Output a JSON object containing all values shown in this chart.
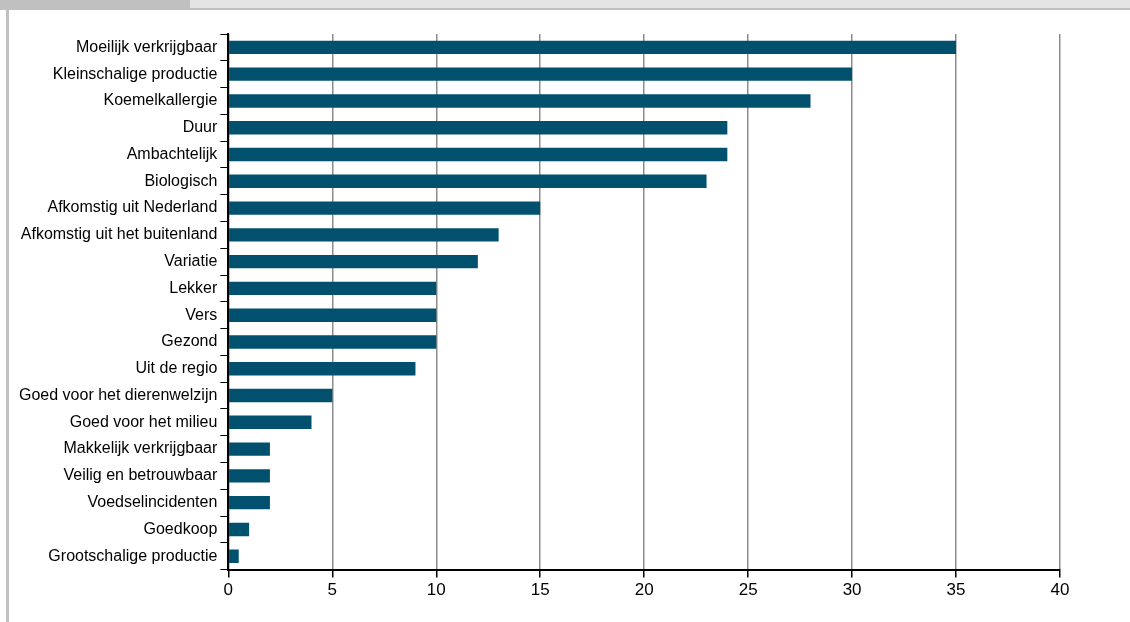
{
  "chart_data": {
    "type": "bar",
    "orientation": "horizontal",
    "categories": [
      "Moeilijk verkrijgbaar",
      "Kleinschalige productie",
      "Koemelkallergie",
      "Duur",
      "Ambachtelijk",
      "Biologisch",
      "Afkomstig uit Nederland",
      "Afkomstig uit het buitenland",
      "Variatie",
      "Lekker",
      "Vers",
      "Gezond",
      "Uit de regio",
      "Goed voor het dierenwelzijn",
      "Goed voor het milieu",
      "Makkelijk verkrijgbaar",
      "Veilig en betrouwbaar",
      "Voedselincidenten",
      "Goedkoop",
      "Grootschalige productie"
    ],
    "values": [
      35,
      30,
      28,
      24,
      24,
      23,
      15,
      13,
      12,
      10,
      10,
      10,
      9,
      5,
      4,
      2,
      2,
      2,
      1,
      0.5
    ],
    "color": "#00506e",
    "xlim": [
      0,
      40
    ],
    "xticks": [
      0,
      5,
      10,
      15,
      20,
      25,
      30,
      35,
      40
    ],
    "grid": "x",
    "legend": false
  }
}
